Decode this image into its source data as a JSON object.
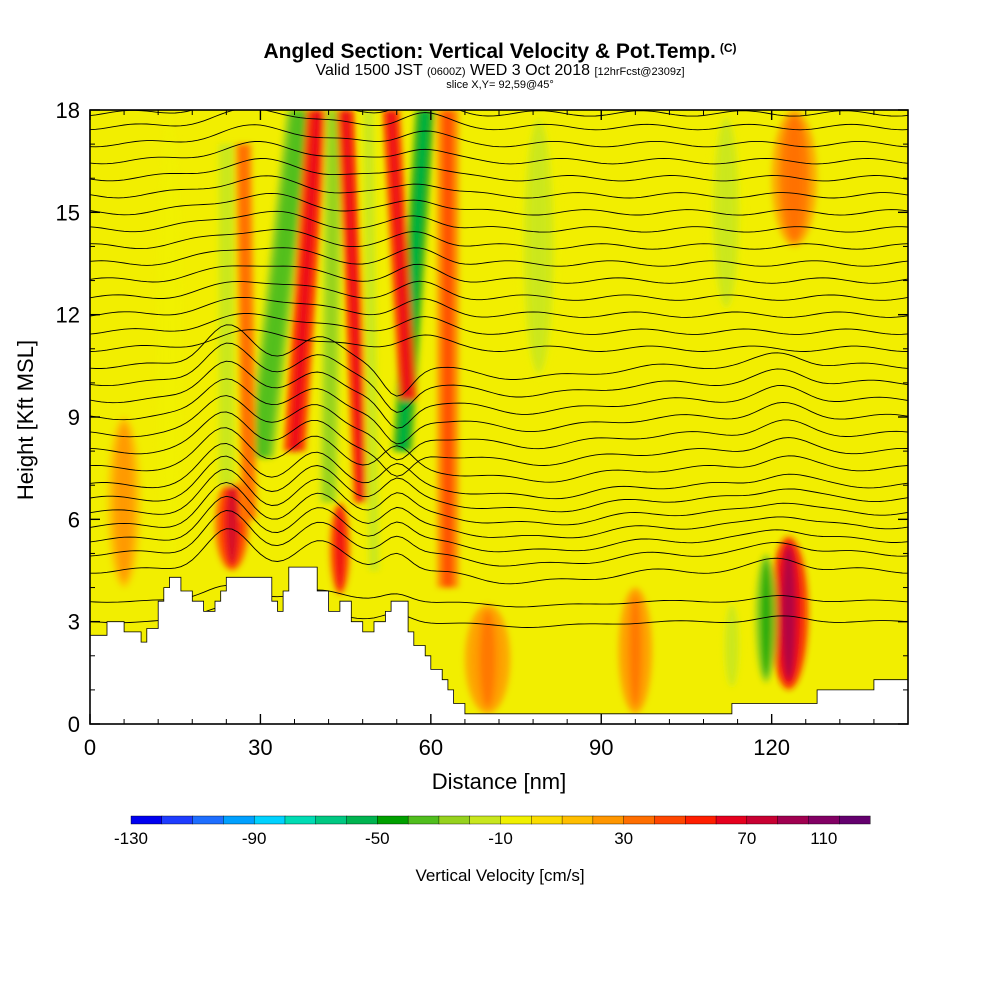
{
  "header": {
    "title": "Angled Section: Vertical Velocity & Pot.Temp.",
    "title_mark": "(C)",
    "valid_prefix": "Valid 1500 JST",
    "valid_utc": "(0600Z)",
    "valid_date": "WED 3 Oct 2018",
    "forecast": "[12hrFcst@2309z]",
    "slice": "slice X,Y= 92,59@45°"
  },
  "chart_data": {
    "type": "heatmap",
    "xlabel": "Distance [nm]",
    "ylabel": "Height [Kft MSL]",
    "xlim": [
      0,
      144
    ],
    "ylim": [
      0,
      18
    ],
    "x_ticks": [
      "0",
      "30",
      "60",
      "90",
      "120"
    ],
    "x_tick_values": [
      0,
      30,
      60,
      90,
      120
    ],
    "y_ticks": [
      "0",
      "3",
      "6",
      "9",
      "12",
      "15",
      "18"
    ],
    "y_tick_values": [
      0,
      3,
      6,
      9,
      12,
      15,
      18
    ],
    "terrain_kft": [
      [
        0,
        2.6
      ],
      [
        3,
        2.6
      ],
      [
        3,
        3
      ],
      [
        6,
        3
      ],
      [
        6,
        2.7
      ],
      [
        9,
        2.7
      ],
      [
        9,
        2.4
      ],
      [
        10,
        2.4
      ],
      [
        10,
        2.8
      ],
      [
        12,
        2.8
      ],
      [
        12,
        3.6
      ],
      [
        13,
        3.6
      ],
      [
        13,
        4
      ],
      [
        14,
        4
      ],
      [
        14,
        4.3
      ],
      [
        16,
        4.3
      ],
      [
        16,
        3.9
      ],
      [
        18,
        3.9
      ],
      [
        18,
        3.6
      ],
      [
        20,
        3.6
      ],
      [
        20,
        3.3
      ],
      [
        22,
        3.3
      ],
      [
        22,
        3.6
      ],
      [
        23,
        3.6
      ],
      [
        23,
        3.9
      ],
      [
        24,
        3.9
      ],
      [
        24,
        4.3
      ],
      [
        32,
        4.3
      ],
      [
        32,
        3.6
      ],
      [
        33,
        3.6
      ],
      [
        33,
        3.3
      ],
      [
        34,
        3.3
      ],
      [
        34,
        3.9
      ],
      [
        35,
        3.9
      ],
      [
        35,
        4.6
      ],
      [
        40,
        4.6
      ],
      [
        40,
        3.9
      ],
      [
        42,
        3.9
      ],
      [
        42,
        3.3
      ],
      [
        44,
        3.3
      ],
      [
        44,
        3.6
      ],
      [
        46,
        3.6
      ],
      [
        46,
        3
      ],
      [
        48,
        3
      ],
      [
        48,
        2.7
      ],
      [
        50,
        2.7
      ],
      [
        50,
        3
      ],
      [
        52,
        3
      ],
      [
        52,
        3.3
      ],
      [
        53,
        3.3
      ],
      [
        53,
        3.6
      ],
      [
        56,
        3.6
      ],
      [
        56,
        2.7
      ],
      [
        57,
        2.7
      ],
      [
        57,
        2.3
      ],
      [
        59,
        2.3
      ],
      [
        59,
        2
      ],
      [
        60,
        2
      ],
      [
        60,
        1.6
      ],
      [
        62,
        1.6
      ],
      [
        62,
        1.3
      ],
      [
        63,
        1.3
      ],
      [
        63,
        1
      ],
      [
        64,
        1
      ],
      [
        64,
        0.6
      ],
      [
        66,
        0.6
      ],
      [
        66,
        0.3
      ],
      [
        113,
        0.3
      ],
      [
        113,
        0.6
      ],
      [
        128,
        0.6
      ],
      [
        128,
        1
      ],
      [
        138,
        1
      ],
      [
        138,
        1.3
      ],
      [
        144,
        1.3
      ]
    ],
    "colorbar": {
      "title": "Vertical Velocity [cm/s]",
      "labels": [
        "-130",
        "-90",
        "-50",
        "-10",
        "30",
        "70",
        "110"
      ],
      "colors": [
        "#0000f0",
        "#1e3cff",
        "#1e6eff",
        "#00a0ff",
        "#00d2ff",
        "#00dcb4",
        "#00c882",
        "#00b450",
        "#00a000",
        "#50be1e",
        "#96d21e",
        "#c8e61e",
        "#f0f000",
        "#fadc00",
        "#ffbe00",
        "#ff9600",
        "#ff6e00",
        "#ff4600",
        "#ff1e00",
        "#e6001e",
        "#c80032",
        "#a00050",
        "#820064",
        "#64006e"
      ]
    },
    "potential_temperature_contours": {
      "base_levels_kft": [
        3.0,
        3.6,
        4.5,
        5.0,
        5.4,
        5.8,
        6.2,
        6.6,
        7.0,
        7.5,
        8.0,
        8.5,
        9.0,
        9.5,
        10.0,
        10.5,
        11.0,
        11.5,
        12.0,
        12.5,
        13.0,
        13.5,
        14.0,
        14.5,
        15.0,
        15.5,
        16.0,
        16.5,
        17.0,
        17.5,
        17.9
      ]
    },
    "velocity_features": [
      {
        "x": 25,
        "y0": 4.5,
        "y1": 7.2,
        "w": 3.0,
        "v": 60
      },
      {
        "x": 44,
        "y0": 3.8,
        "y1": 6.5,
        "w": 1.8,
        "v": 55
      },
      {
        "x": 123,
        "y0": 1.0,
        "y1": 5.5,
        "w": 3.5,
        "v": 70
      },
      {
        "x": 119,
        "y0": 1.2,
        "y1": 5.0,
        "w": 2.0,
        "v": -60
      },
      {
        "x": 113,
        "y0": 1.0,
        "y1": 3.6,
        "w": 2.0,
        "v": -25
      },
      {
        "x": 79,
        "y0": 10.0,
        "y1": 18.0,
        "w": 4.0,
        "v": -25
      },
      {
        "x": 112,
        "y0": 12.0,
        "y1": 18.0,
        "w": 3.5,
        "v": -30
      },
      {
        "x": 124,
        "y0": 14.0,
        "y1": 18.0,
        "w": 4.0,
        "v": 25
      },
      {
        "x": 14,
        "y0": 4.5,
        "y1": 18.0,
        "w": 2.5,
        "v": -20
      },
      {
        "x": 6,
        "y0": 4.0,
        "y1": 9.0,
        "w": 3.0,
        "v": 15
      },
      {
        "x": 96,
        "y0": 0.3,
        "y1": 4.0,
        "w": 3.0,
        "v": 20
      },
      {
        "x": 70,
        "y0": 0.3,
        "y1": 3.5,
        "w": 4.0,
        "v": 22
      }
    ],
    "velocity_slanted_bands": [
      {
        "x0": 30,
        "y0": 7.8,
        "x1": 37,
        "y1": 18.0,
        "w": 2.5,
        "v": -50
      },
      {
        "x0": 36,
        "y0": 8.0,
        "x1": 40,
        "y1": 18.0,
        "w": 2.0,
        "v": 55
      },
      {
        "x0": 42,
        "y0": 6.5,
        "x1": 43,
        "y1": 18.0,
        "w": 1.7,
        "v": -40
      },
      {
        "x0": 48,
        "y0": 6.5,
        "x1": 45,
        "y1": 18.0,
        "w": 1.6,
        "v": 55
      },
      {
        "x0": 55,
        "y0": 8.0,
        "x1": 59,
        "y1": 18.0,
        "w": 1.8,
        "v": -70
      },
      {
        "x0": 56,
        "y0": 9.5,
        "x1": 53,
        "y1": 18.0,
        "w": 1.6,
        "v": 50
      },
      {
        "x0": 24,
        "y0": 7.0,
        "x1": 24,
        "y1": 17.0,
        "w": 2.0,
        "v": -30
      },
      {
        "x0": 28,
        "y0": 6.0,
        "x1": 27,
        "y1": 17.0,
        "w": 1.5,
        "v": 25
      },
      {
        "x0": 50,
        "y0": 4.5,
        "x1": 49,
        "y1": 18.0,
        "w": 1.4,
        "v": -25
      },
      {
        "x0": 63,
        "y0": 4.0,
        "x1": 63,
        "y1": 18.0,
        "w": 2.0,
        "v": 30
      }
    ]
  }
}
